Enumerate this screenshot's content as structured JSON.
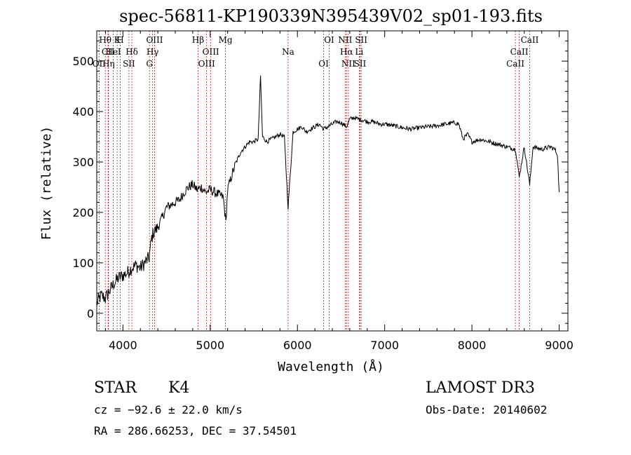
{
  "chart_data": {
    "type": "line",
    "title": "spec-56811-KP190339N395439V02_sp01-193.fits",
    "xlabel": "Wavelength (Å)",
    "ylabel": "Flux (relative)",
    "xlim": [
      3700,
      9100
    ],
    "ylim": [
      -35,
      560
    ],
    "x_ticks": [
      4000,
      5000,
      6000,
      7000,
      8000,
      9000
    ],
    "y_ticks": [
      0,
      100,
      200,
      300,
      400,
      500
    ],
    "grid": false,
    "series": [
      {
        "x": [
          3700,
          3750,
          3800,
          3850,
          3900,
          3950,
          4000,
          4050,
          4100,
          4150,
          4200,
          4250,
          4300,
          4330,
          4350,
          4400,
          4450,
          4500,
          4550,
          4600,
          4650,
          4700,
          4750,
          4800,
          4850,
          4900,
          4950,
          5000,
          5050,
          5100,
          5150,
          5180,
          5200,
          5250,
          5300,
          5350,
          5400,
          5450,
          5500,
          5550,
          5577,
          5600,
          5650,
          5700,
          5750,
          5800,
          5850,
          5893,
          5950,
          6000,
          6050,
          6100,
          6150,
          6200,
          6250,
          6300,
          6350,
          6400,
          6450,
          6500,
          6563,
          6600,
          6650,
          6700,
          6750,
          6800,
          6850,
          6900,
          6950,
          7000,
          7100,
          7200,
          7300,
          7400,
          7500,
          7600,
          7700,
          7800,
          7850,
          7900,
          7950,
          8000,
          8100,
          8200,
          8300,
          8400,
          8500,
          8542,
          8600,
          8662,
          8700,
          8800,
          8900,
          8950,
          8980,
          9000
        ],
        "y": [
          20,
          35,
          30,
          45,
          60,
          70,
          75,
          80,
          90,
          95,
          90,
          100,
          110,
          150,
          160,
          170,
          190,
          210,
          215,
          220,
          225,
          240,
          250,
          255,
          245,
          250,
          240,
          245,
          240,
          235,
          230,
          180,
          245,
          275,
          300,
          320,
          330,
          340,
          340,
          345,
          470,
          350,
          340,
          345,
          350,
          355,
          350,
          210,
          360,
          365,
          370,
          360,
          365,
          370,
          375,
          365,
          370,
          375,
          380,
          378,
          370,
          385,
          388,
          385,
          383,
          380,
          380,
          378,
          375,
          375,
          372,
          368,
          365,
          368,
          370,
          372,
          375,
          378,
          375,
          345,
          355,
          340,
          345,
          340,
          335,
          330,
          325,
          270,
          330,
          255,
          330,
          325,
          330,
          325,
          315,
          240
        ]
      }
    ],
    "annotations": [
      {
        "text": "Hθ",
        "x": 3798
      },
      {
        "text": "CII",
        "x": 3830
      },
      {
        "text": "OII",
        "x": 3727
      },
      {
        "text": "K",
        "x": 3934
      },
      {
        "text": "HeI",
        "x": 3889
      },
      {
        "text": "Hη",
        "x": 3835
      },
      {
        "text": "H",
        "x": 3969
      },
      {
        "text": "Hδ",
        "x": 4102
      },
      {
        "text": "SII",
        "x": 4069
      },
      {
        "text": "OIII",
        "x": 4363
      },
      {
        "text": "Hγ",
        "x": 4340
      },
      {
        "text": "G",
        "x": 4304
      },
      {
        "text": "Hβ",
        "x": 4861
      },
      {
        "text": "OIII",
        "x": 5007
      },
      {
        "text": "OIII",
        "x": 4959
      },
      {
        "text": "Mg",
        "x": 5175
      },
      {
        "text": "Na",
        "x": 5893
      },
      {
        "text": "OI",
        "x": 6300
      },
      {
        "text": "OI",
        "x": 6364
      },
      {
        "text": "Hα",
        "x": 6563
      },
      {
        "text": "SII",
        "x": 6717
      },
      {
        "text": "NII",
        "x": 6548
      },
      {
        "text": "Li",
        "x": 6708
      },
      {
        "text": "NII",
        "x": 6584
      },
      {
        "text": "SII",
        "x": 6731
      },
      {
        "text": "CaII",
        "x": 8542
      },
      {
        "text": "CaII",
        "x": 8498
      },
      {
        "text": "CaII",
        "x": 8662
      }
    ]
  },
  "info": {
    "class_label": "STAR",
    "subclass": "K4",
    "survey": "LAMOST DR3",
    "cz": "cz = −92.6 ± 22.0 km/s",
    "obs_date": "Obs-Date: 20140602",
    "coords": "RA = 286.66253, DEC =  37.54501"
  }
}
